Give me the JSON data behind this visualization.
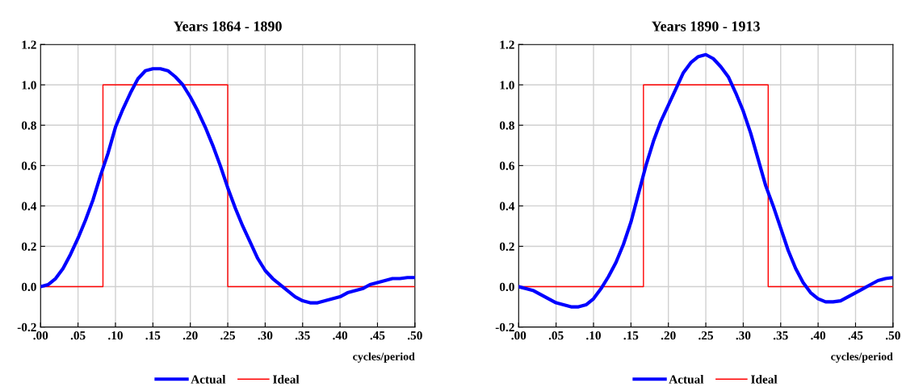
{
  "chart_data": [
    {
      "type": "line",
      "title": "Years 1864 - 1890",
      "xlabel": "cycles/period",
      "xlim": [
        0,
        0.5
      ],
      "ylim": [
        -0.2,
        1.2
      ],
      "xticks": [
        {
          "value": 0,
          "label": ".00"
        },
        {
          "value": 0.05,
          "label": ".05"
        },
        {
          "value": 0.1,
          "label": ".10"
        },
        {
          "value": 0.15,
          "label": ".15"
        },
        {
          "value": 0.2,
          "label": ".20"
        },
        {
          "value": 0.25,
          "label": ".25"
        },
        {
          "value": 0.3,
          "label": ".30"
        },
        {
          "value": 0.35,
          "label": ".35"
        },
        {
          "value": 0.4,
          "label": ".40"
        },
        {
          "value": 0.45,
          "label": ".45"
        },
        {
          "value": 0.5,
          "label": ".50"
        }
      ],
      "yticks": [
        {
          "value": -0.2,
          "label": "-0.2"
        },
        {
          "value": 0,
          "label": "0.0"
        },
        {
          "value": 0.2,
          "label": "0.2"
        },
        {
          "value": 0.4,
          "label": "0.4"
        },
        {
          "value": 0.6,
          "label": "0.6"
        },
        {
          "value": 0.8,
          "label": "0.8"
        },
        {
          "value": 1.0,
          "label": "1.0"
        },
        {
          "value": 1.2,
          "label": "1.2"
        }
      ],
      "grid": true,
      "legend": "bottom",
      "series": [
        {
          "name": "Actual",
          "color": "#0000ff",
          "x": [
            0,
            0.01,
            0.02,
            0.03,
            0.04,
            0.05,
            0.06,
            0.07,
            0.08,
            0.09,
            0.1,
            0.11,
            0.12,
            0.13,
            0.14,
            0.15,
            0.16,
            0.17,
            0.18,
            0.19,
            0.2,
            0.21,
            0.22,
            0.23,
            0.24,
            0.25,
            0.26,
            0.27,
            0.28,
            0.29,
            0.3,
            0.31,
            0.32,
            0.33,
            0.34,
            0.35,
            0.36,
            0.37,
            0.38,
            0.39,
            0.4,
            0.41,
            0.42,
            0.43,
            0.44,
            0.45,
            0.46,
            0.47,
            0.48,
            0.49,
            0.5
          ],
          "values": [
            0,
            0.01,
            0.04,
            0.09,
            0.16,
            0.24,
            0.33,
            0.43,
            0.55,
            0.66,
            0.79,
            0.88,
            0.96,
            1.03,
            1.07,
            1.08,
            1.08,
            1.07,
            1.04,
            1.0,
            0.94,
            0.87,
            0.79,
            0.7,
            0.6,
            0.49,
            0.39,
            0.3,
            0.22,
            0.14,
            0.08,
            0.04,
            0.01,
            -0.02,
            -0.05,
            -0.07,
            -0.08,
            -0.08,
            -0.07,
            -0.06,
            -0.05,
            -0.03,
            -0.02,
            -0.01,
            0.01,
            0.02,
            0.03,
            0.04,
            0.04,
            0.045,
            0.045
          ]
        },
        {
          "name": "Ideal",
          "color": "#ff0000",
          "x": [
            0,
            0.0833,
            0.0833,
            0.25,
            0.25,
            0.5
          ],
          "values": [
            0,
            0,
            1,
            1,
            0,
            0
          ]
        }
      ]
    },
    {
      "type": "line",
      "title": "Years 1890 - 1913",
      "xlabel": "cycles/period",
      "xlim": [
        0,
        0.5
      ],
      "ylim": [
        -0.2,
        1.2
      ],
      "xticks": [
        {
          "value": 0,
          "label": ".00"
        },
        {
          "value": 0.05,
          "label": ".05"
        },
        {
          "value": 0.1,
          "label": ".10"
        },
        {
          "value": 0.15,
          "label": ".15"
        },
        {
          "value": 0.2,
          "label": ".20"
        },
        {
          "value": 0.25,
          "label": ".25"
        },
        {
          "value": 0.3,
          "label": ".30"
        },
        {
          "value": 0.35,
          "label": ".35"
        },
        {
          "value": 0.4,
          "label": ".40"
        },
        {
          "value": 0.45,
          "label": ".45"
        },
        {
          "value": 0.5,
          "label": ".50"
        }
      ],
      "yticks": [
        {
          "value": -0.2,
          "label": "-0.2"
        },
        {
          "value": 0,
          "label": "0.0"
        },
        {
          "value": 0.2,
          "label": "0.2"
        },
        {
          "value": 0.4,
          "label": "0.4"
        },
        {
          "value": 0.6,
          "label": "0.6"
        },
        {
          "value": 0.8,
          "label": "0.8"
        },
        {
          "value": 1.0,
          "label": "1.0"
        },
        {
          "value": 1.2,
          "label": "1.2"
        }
      ],
      "grid": true,
      "legend": "bottom",
      "series": [
        {
          "name": "Actual",
          "color": "#0000ff",
          "x": [
            0,
            0.01,
            0.02,
            0.03,
            0.04,
            0.05,
            0.06,
            0.07,
            0.08,
            0.09,
            0.1,
            0.11,
            0.12,
            0.13,
            0.14,
            0.15,
            0.16,
            0.17,
            0.18,
            0.19,
            0.2,
            0.21,
            0.22,
            0.23,
            0.24,
            0.25,
            0.26,
            0.27,
            0.28,
            0.29,
            0.3,
            0.31,
            0.32,
            0.33,
            0.34,
            0.35,
            0.36,
            0.37,
            0.38,
            0.39,
            0.4,
            0.41,
            0.42,
            0.43,
            0.44,
            0.45,
            0.46,
            0.47,
            0.48,
            0.49,
            0.5
          ],
          "values": [
            0,
            -0.01,
            -0.02,
            -0.04,
            -0.06,
            -0.08,
            -0.09,
            -0.1,
            -0.1,
            -0.09,
            -0.06,
            -0.01,
            0.05,
            0.12,
            0.21,
            0.32,
            0.46,
            0.6,
            0.72,
            0.82,
            0.9,
            0.98,
            1.06,
            1.11,
            1.14,
            1.15,
            1.13,
            1.09,
            1.04,
            0.96,
            0.87,
            0.76,
            0.63,
            0.5,
            0.4,
            0.29,
            0.18,
            0.09,
            0.02,
            -0.03,
            -0.06,
            -0.075,
            -0.075,
            -0.07,
            -0.05,
            -0.03,
            -0.01,
            0.01,
            0.03,
            0.04,
            0.045
          ]
        },
        {
          "name": "Ideal",
          "color": "#ff0000",
          "x": [
            0,
            0.1667,
            0.1667,
            0.3333,
            0.3333,
            0.5
          ],
          "values": [
            0,
            0,
            1,
            1,
            0,
            0
          ]
        }
      ]
    }
  ]
}
